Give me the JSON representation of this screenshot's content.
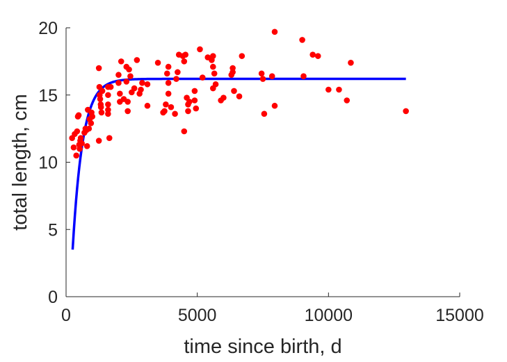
{
  "chart_data": {
    "type": "scatter",
    "xlabel": "time since birth, d",
    "ylabel": "total length, cm",
    "xlim": [
      0,
      15000
    ],
    "ylim": [
      0,
      20
    ],
    "x_ticks": [
      0,
      5000,
      10000,
      15000
    ],
    "y_ticks": [
      0,
      5,
      10,
      15,
      20
    ],
    "x_tick_labels": [
      "0",
      "5000",
      "10000",
      "15000"
    ],
    "y_tick_labels": [
      "0",
      "5",
      "10",
      "15",
      "20"
    ],
    "grid": false,
    "colors": {
      "points": "#ff0000",
      "fit_line": "#0000ff",
      "axes": "#262626"
    },
    "series": [
      {
        "type": "scatter",
        "points": [
          [
            230,
            11.8
          ],
          [
            290,
            11.1
          ],
          [
            330,
            12.1
          ],
          [
            390,
            10.5
          ],
          [
            420,
            12.3
          ],
          [
            450,
            13.4
          ],
          [
            480,
            13.5
          ],
          [
            500,
            11.3
          ],
          [
            520,
            11.0
          ],
          [
            540,
            11.6
          ],
          [
            560,
            11.8
          ],
          [
            600,
            11.4
          ],
          [
            700,
            12.2
          ],
          [
            740,
            12.5
          ],
          [
            780,
            12.4
          ],
          [
            800,
            11.2
          ],
          [
            830,
            13.9
          ],
          [
            870,
            12.5
          ],
          [
            900,
            13.2
          ],
          [
            950,
            12.9
          ],
          [
            970,
            13.7
          ],
          [
            1000,
            13.4
          ],
          [
            1250,
            17.0
          ],
          [
            1250,
            11.6
          ],
          [
            1270,
            15.6
          ],
          [
            1280,
            15.0
          ],
          [
            1300,
            14.7
          ],
          [
            1320,
            14.3
          ],
          [
            1330,
            14.1
          ],
          [
            1350,
            13.7
          ],
          [
            1380,
            15.3
          ],
          [
            1600,
            14.3
          ],
          [
            1600,
            13.9
          ],
          [
            1600,
            13.6
          ],
          [
            1600,
            15.6
          ],
          [
            1600,
            15.0
          ],
          [
            1650,
            11.8
          ],
          [
            1700,
            15.6
          ],
          [
            2000,
            16.5
          ],
          [
            2000,
            15.9
          ],
          [
            2050,
            15.1
          ],
          [
            2050,
            14.5
          ],
          [
            2100,
            17.5
          ],
          [
            2200,
            14.7
          ],
          [
            2300,
            16.0
          ],
          [
            2300,
            17.1
          ],
          [
            2350,
            14.5
          ],
          [
            2350,
            13.8
          ],
          [
            2400,
            16.9
          ],
          [
            2450,
            16.4
          ],
          [
            2500,
            15.2
          ],
          [
            2600,
            15.5
          ],
          [
            2700,
            17.6
          ],
          [
            2800,
            15.1
          ],
          [
            2850,
            15.4
          ],
          [
            2900,
            15.9
          ],
          [
            3100,
            15.8
          ],
          [
            3100,
            14.2
          ],
          [
            3500,
            17.4
          ],
          [
            3700,
            13.7
          ],
          [
            3750,
            13.8
          ],
          [
            3800,
            14.3
          ],
          [
            3850,
            16.6
          ],
          [
            3900,
            17.1
          ],
          [
            3900,
            15.9
          ],
          [
            3900,
            15.1
          ],
          [
            4000,
            14.1
          ],
          [
            4150,
            13.6
          ],
          [
            4200,
            16.2
          ],
          [
            4250,
            16.7
          ],
          [
            4300,
            18.0
          ],
          [
            4450,
            17.9
          ],
          [
            4500,
            17.5
          ],
          [
            4500,
            12.3
          ],
          [
            4550,
            18.0
          ],
          [
            4600,
            14.8
          ],
          [
            4650,
            13.8
          ],
          [
            4650,
            14.3
          ],
          [
            4700,
            14.5
          ],
          [
            4900,
            15.3
          ],
          [
            4900,
            14.6
          ],
          [
            4950,
            14.0
          ],
          [
            5100,
            18.4
          ],
          [
            5200,
            16.3
          ],
          [
            5400,
            17.8
          ],
          [
            5550,
            17.6
          ],
          [
            5600,
            17.1
          ],
          [
            5600,
            17.9
          ],
          [
            5600,
            15.5
          ],
          [
            5650,
            16.6
          ],
          [
            5700,
            15.8
          ],
          [
            5900,
            14.6
          ],
          [
            6000,
            14.8
          ],
          [
            6300,
            16.5
          ],
          [
            6350,
            17.0
          ],
          [
            6350,
            16.7
          ],
          [
            6400,
            15.3
          ],
          [
            6600,
            14.9
          ],
          [
            6700,
            17.9
          ],
          [
            7450,
            16.6
          ],
          [
            7500,
            16.2
          ],
          [
            7550,
            13.6
          ],
          [
            7850,
            16.4
          ],
          [
            7950,
            19.7
          ],
          [
            7950,
            14.2
          ],
          [
            9000,
            19.1
          ],
          [
            9050,
            16.4
          ],
          [
            9400,
            18.0
          ],
          [
            9600,
            17.9
          ],
          [
            10000,
            15.4
          ],
          [
            10400,
            15.4
          ],
          [
            10700,
            14.6
          ],
          [
            10850,
            17.4
          ],
          [
            12950,
            13.8
          ]
        ]
      },
      {
        "type": "line",
        "model": "von-bertalanffy",
        "L_inf": 16.2,
        "L0": 3.5,
        "k": 0.0026,
        "t0": 250,
        "x_range": [
          250,
          12950
        ]
      }
    ]
  }
}
